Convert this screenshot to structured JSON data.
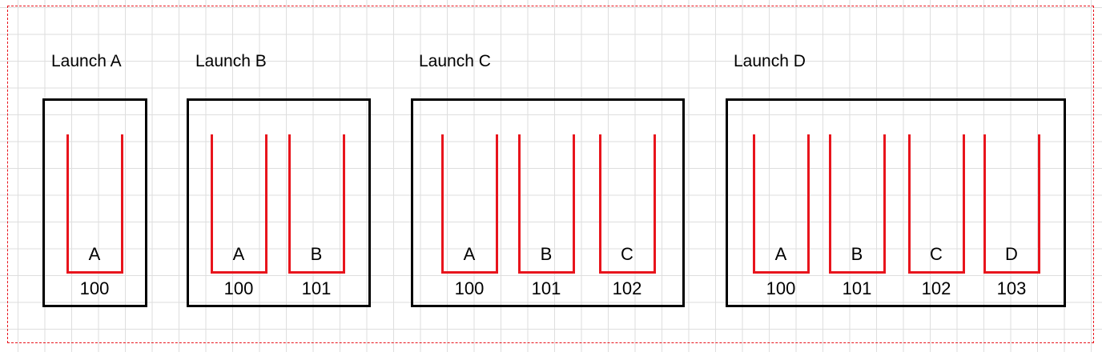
{
  "colors": {
    "tube": "#e8141c",
    "box": "#000000",
    "grid": "#dedede",
    "selection": "#e8141c"
  },
  "launches": [
    {
      "title": "Launch A",
      "slots": [
        {
          "letter": "A",
          "number": "100"
        }
      ]
    },
    {
      "title": "Launch B",
      "slots": [
        {
          "letter": "A",
          "number": "100"
        },
        {
          "letter": "B",
          "number": "101"
        }
      ]
    },
    {
      "title": "Launch C",
      "slots": [
        {
          "letter": "A",
          "number": "100"
        },
        {
          "letter": "B",
          "number": "101"
        },
        {
          "letter": "C",
          "number": "102"
        }
      ]
    },
    {
      "title": "Launch D",
      "slots": [
        {
          "letter": "A",
          "number": "100"
        },
        {
          "letter": "B",
          "number": "101"
        },
        {
          "letter": "C",
          "number": "102"
        },
        {
          "letter": "D",
          "number": "103"
        }
      ]
    }
  ]
}
